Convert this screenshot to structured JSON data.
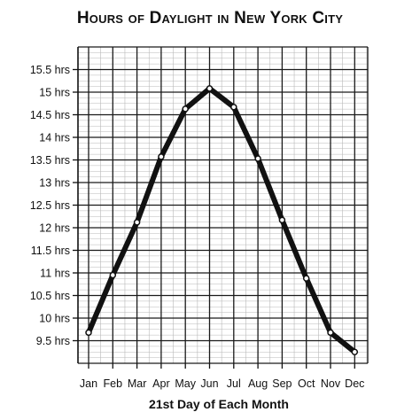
{
  "chart_data": {
    "type": "line",
    "title": "Hours of Daylight in New York City",
    "xlabel": "21st Day of Each Month",
    "ylabel": "",
    "categories": [
      "Jan",
      "Feb",
      "Mar",
      "Apr",
      "May",
      "Jun",
      "Jul",
      "Aug",
      "Sep",
      "Oct",
      "Nov",
      "Dec"
    ],
    "y_ticks": [
      "9.5 hrs",
      "10 hrs",
      "10.5 hrs",
      "11 hrs",
      "11.5 hrs",
      "12 hrs",
      "12.5 hrs",
      "13 hrs",
      "13.5 hrs",
      "14 hrs",
      "14.5 hrs",
      "15 hrs",
      "15.5 hrs"
    ],
    "y_tick_values": [
      9.5,
      10,
      10.5,
      11,
      11.5,
      12,
      12.5,
      13,
      13.5,
      14,
      14.5,
      15,
      15.5
    ],
    "ylim": [
      9,
      16
    ],
    "series": [
      {
        "values": [
          9.68,
          10.95,
          12.12,
          13.57,
          14.63,
          15.08,
          14.67,
          13.53,
          12.17,
          10.88,
          9.68,
          9.25
        ]
      }
    ],
    "grid": true,
    "minor_grid": true,
    "line_color": "#111111"
  }
}
